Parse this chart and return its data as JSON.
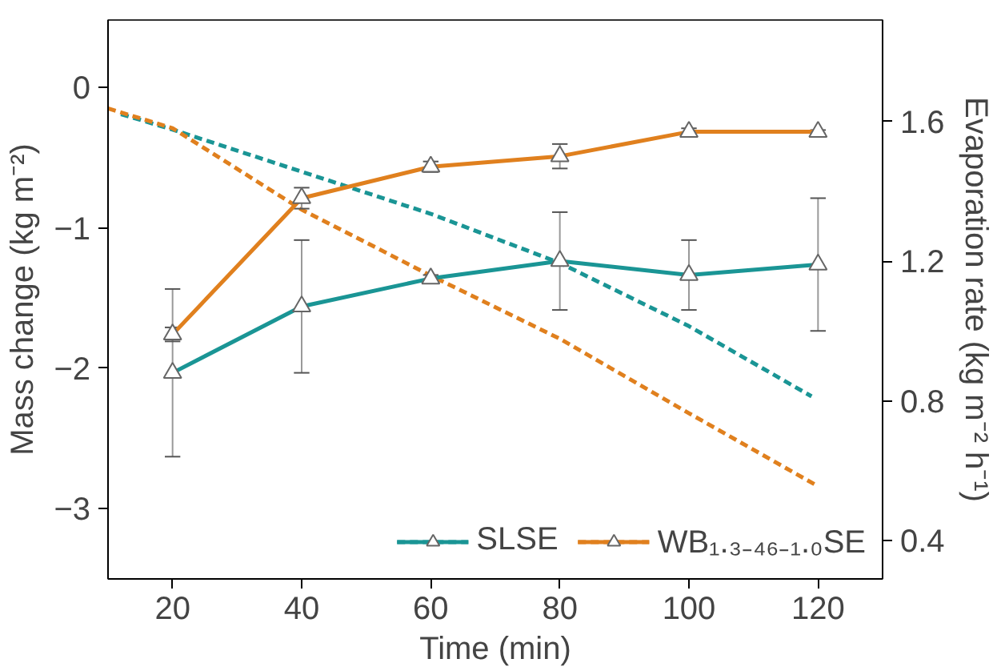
{
  "chart_data": {
    "type": "line",
    "xlabel": "Time (min)",
    "ylabel": "Mass change (kg m⁻²)",
    "y2label": "Evaporation rate (kg m⁻² h⁻¹)",
    "xlim": [
      10,
      130
    ],
    "xticks": [
      20,
      40,
      60,
      80,
      100,
      120
    ],
    "ylim": [
      -3.5,
      0.48
    ],
    "yticks": [
      -3,
      -2,
      -1,
      0
    ],
    "y2lim": [
      0.29,
      1.89
    ],
    "y2ticks": [
      0.4,
      0.8,
      1.2,
      1.6
    ],
    "grid": false,
    "legend": "bottom right",
    "series": [
      {
        "color": "#1a9595",
        "line_style": "dashed",
        "marker": "none",
        "x": [
          12,
          20,
          40,
          60,
          80,
          100,
          119
        ],
        "values": [
          -0.19,
          -0.3,
          -0.6,
          -0.9,
          -1.25,
          -1.7,
          -2.2
        ]
      },
      {
        "color": "#e0801e",
        "line_style": "dashed",
        "marker": "none",
        "x": [
          10,
          20,
          40,
          60,
          80,
          100,
          120
        ],
        "values": [
          -0.15,
          -0.29,
          -0.87,
          -1.34,
          -1.79,
          -2.32,
          -2.84
        ]
      },
      {
        "name": "SLSE",
        "color": "#1a9595",
        "axis": "y2",
        "line_style": "solid",
        "marker": "triangle",
        "x": [
          20,
          40,
          60,
          80,
          100,
          120
        ],
        "values": [
          0.88,
          1.07,
          1.15,
          1.2,
          1.16,
          1.19
        ],
        "errors": [
          0.24,
          0.19,
          0.01,
          0.14,
          0.1,
          0.19
        ]
      },
      {
        "name": "WB₁.₃₋₄₆₋₁.₀SE",
        "color": "#e0801e",
        "axis": "y2",
        "line_style": "solid",
        "marker": "triangle",
        "x": [
          20,
          40,
          60,
          80,
          100,
          120
        ],
        "values": [
          0.99,
          1.38,
          1.47,
          1.5,
          1.57,
          1.57
        ],
        "errors": [
          0.02,
          0.03,
          0.015,
          0.035,
          0.01,
          0.005
        ]
      }
    ]
  }
}
